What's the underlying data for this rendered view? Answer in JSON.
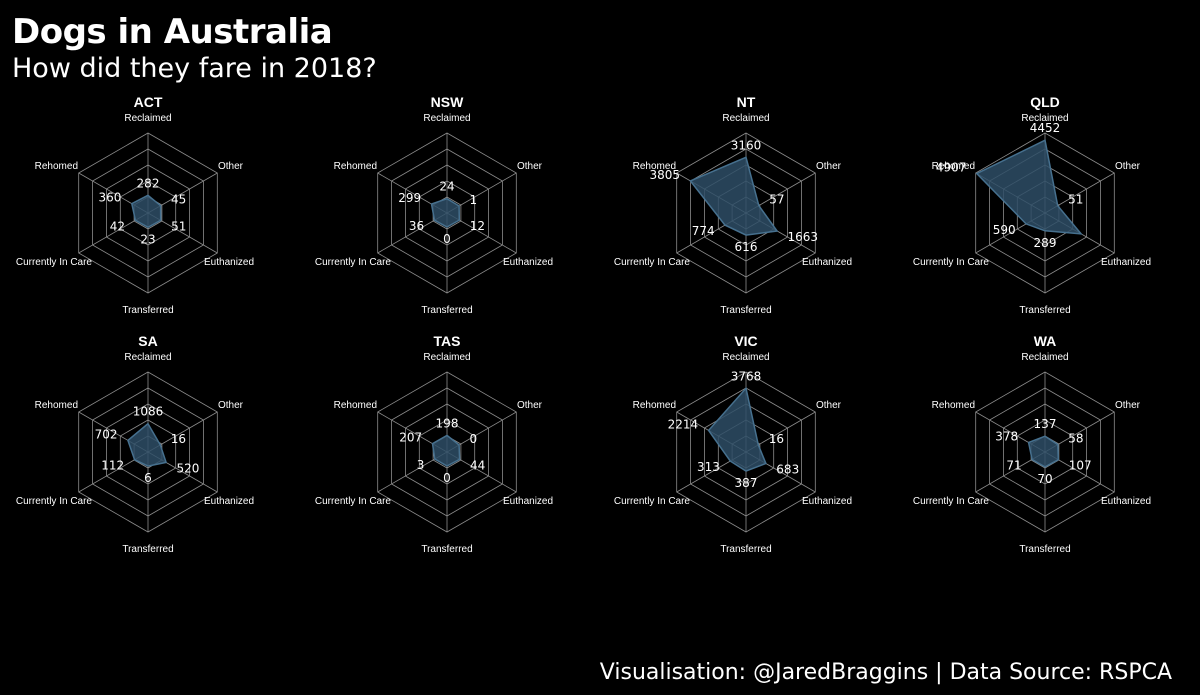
{
  "header": {
    "title": "Dogs in Australia",
    "subtitle": "How did they fare in 2018?"
  },
  "footer": {
    "caption": "Visualisation: @JaredBraggins  |  Data Source: RSPCA"
  },
  "colors": {
    "background": "#000000",
    "grid": "#8c8c8c",
    "fill": "#2e4d66",
    "stroke": "#46708e",
    "text": "#ffffff"
  },
  "chart_data": {
    "type": "radar",
    "axes": [
      "Reclaimed",
      "Other",
      "Euthanized",
      "Transferred",
      "Currently In Care",
      "Rehomed"
    ],
    "max_value": 5000,
    "grid_levels": 5,
    "panels": [
      {
        "name": "ACT",
        "values": [
          282,
          45,
          51,
          23,
          42,
          360
        ]
      },
      {
        "name": "NSW",
        "values": [
          24,
          1,
          12,
          0,
          36,
          299
        ]
      },
      {
        "name": "NT",
        "values": [
          3160,
          57,
          1663,
          616,
          774,
          3805
        ]
      },
      {
        "name": "QLD",
        "values": [
          4452,
          51,
          2100,
          289,
          590,
          4907
        ]
      },
      {
        "name": "SA",
        "values": [
          1086,
          16,
          520,
          6,
          112,
          702
        ]
      },
      {
        "name": "TAS",
        "values": [
          198,
          0,
          44,
          0,
          3,
          207
        ]
      },
      {
        "name": "VIC",
        "values": [
          3768,
          16,
          683,
          387,
          313,
          2214
        ]
      },
      {
        "name": "WA",
        "values": [
          137,
          58,
          107,
          70,
          71,
          378
        ]
      }
    ],
    "value_labels": [
      [
        "282",
        "45",
        "51",
        "23",
        "42",
        "360"
      ],
      [
        "24",
        "1",
        "12",
        "0",
        "36",
        "299"
      ],
      [
        "3160",
        "57",
        "1663",
        "616",
        "774",
        "3805"
      ],
      [
        "4452",
        "51",
        "",
        "289",
        "590",
        "4907"
      ],
      [
        "1086",
        "16",
        "520",
        "6",
        "112",
        "702"
      ],
      [
        "198",
        "0",
        "44",
        "0",
        "3",
        "207"
      ],
      [
        "3768",
        "16",
        "683",
        "387",
        "313",
        "2214"
      ],
      [
        "137",
        "58",
        "107",
        "70",
        "71",
        "378"
      ]
    ]
  }
}
